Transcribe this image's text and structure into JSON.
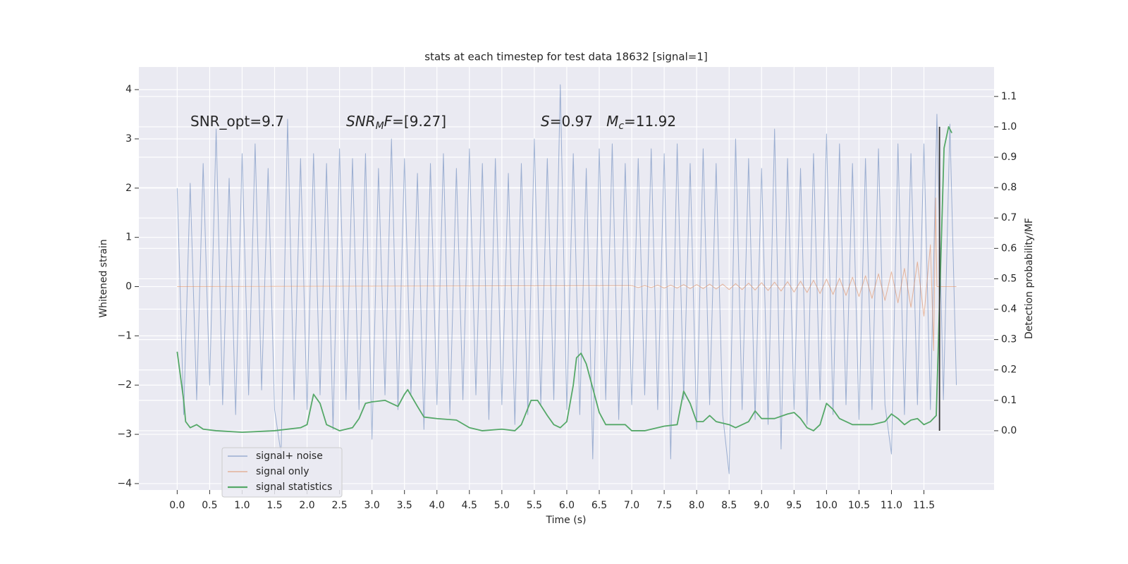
{
  "chart_data": {
    "type": "line",
    "title": "stats at each timestep for test data 18632 [signal=1]",
    "xlabel": "Time (s)",
    "ylabel": "Whitened strain",
    "y2label": "Detection probability/MF",
    "xlim": [
      -0.59,
      12.58
    ],
    "ylim": [
      -4.13,
      4.46
    ],
    "y2lim": [
      -0.195,
      1.197
    ],
    "xticks": [
      {
        "value": 0,
        "label": "0.0"
      },
      0.5,
      {
        "value": 1,
        "label": "1.0"
      },
      1.5,
      {
        "value": 2,
        "label": "2.0"
      },
      2.5,
      {
        "value": 3,
        "label": "3.0"
      },
      3.5,
      {
        "value": 4,
        "label": "4.0"
      },
      4.5,
      {
        "value": 5,
        "label": "5.0"
      },
      5.5,
      {
        "value": 6,
        "label": "6.0"
      },
      6.5,
      {
        "value": 7,
        "label": "7.0"
      },
      7.5,
      {
        "value": 8,
        "label": "8.0"
      },
      8.5,
      {
        "value": 9,
        "label": "9.0"
      },
      9.5,
      {
        "value": 10,
        "label": "10.0"
      },
      10.5,
      {
        "value": 11,
        "label": "11.0"
      },
      11.5
    ],
    "yticks": [
      {
        "value": -4,
        "label": "−4"
      },
      {
        "value": -3,
        "label": "−3"
      },
      {
        "value": -2,
        "label": "−2"
      },
      {
        "value": -1,
        "label": "−1"
      },
      0,
      1,
      2,
      3,
      4
    ],
    "y2ticks": [
      {
        "value": 0,
        "label": "0.0"
      },
      0.1,
      0.2,
      0.3,
      0.4,
      0.5,
      0.6,
      0.7,
      0.8,
      0.9,
      {
        "value": 1,
        "label": "1.0"
      },
      1.1
    ],
    "grid": true,
    "legend": "lower left",
    "annotations": [
      {
        "parts": [
          "SNR_opt=9.7"
        ]
      },
      {
        "parts": [
          "SNR",
          "M",
          "F",
          "=[9.27]"
        ]
      },
      {
        "parts": [
          "S",
          "=0.97   ",
          "M",
          "c",
          "=11.92"
        ]
      }
    ],
    "vline": {
      "x": 11.74,
      "y2range": [
        0,
        1
      ],
      "color": "#333333"
    },
    "series": [
      {
        "name": "signal+ noise",
        "color": "#4c72b0",
        "x": [
          0,
          0.1,
          0.2,
          0.3,
          0.4,
          0.5,
          0.6,
          0.7,
          0.8,
          0.9,
          1.0,
          1.1,
          1.2,
          1.3,
          1.4,
          1.5,
          1.6,
          1.7,
          1.8,
          1.9,
          2.0,
          2.1,
          2.2,
          2.3,
          2.4,
          2.5,
          2.6,
          2.7,
          2.8,
          2.9,
          3.0,
          3.1,
          3.2,
          3.3,
          3.4,
          3.5,
          3.6,
          3.7,
          3.8,
          3.9,
          4.0,
          4.1,
          4.2,
          4.3,
          4.4,
          4.5,
          4.6,
          4.7,
          4.8,
          4.9,
          5.0,
          5.1,
          5.2,
          5.3,
          5.4,
          5.5,
          5.6,
          5.7,
          5.8,
          5.9,
          6.0,
          6.1,
          6.2,
          6.3,
          6.4,
          6.5,
          6.6,
          6.7,
          6.8,
          6.9,
          7.0,
          7.1,
          7.2,
          7.3,
          7.4,
          7.5,
          7.6,
          7.7,
          7.8,
          7.9,
          8.0,
          8.1,
          8.2,
          8.3,
          8.4,
          8.5,
          8.6,
          8.7,
          8.8,
          8.9,
          9.0,
          9.1,
          9.2,
          9.3,
          9.4,
          9.5,
          9.6,
          9.7,
          9.8,
          9.9,
          10.0,
          10.1,
          10.2,
          10.3,
          10.4,
          10.5,
          10.6,
          10.7,
          10.8,
          10.9,
          11.0,
          11.1,
          11.2,
          11.3,
          11.4,
          11.5,
          11.6,
          11.7,
          11.8,
          11.9,
          12.0
        ],
        "values": [
          2.0,
          -2.6,
          2.1,
          -2.3,
          2.5,
          -2.0,
          3.2,
          -2.4,
          2.2,
          -2.6,
          2.7,
          -2.2,
          2.9,
          -2.1,
          2.4,
          -2.5,
          -3.4,
          3.4,
          -2.3,
          2.6,
          -2.5,
          2.7,
          -2.2,
          2.5,
          -2.9,
          2.8,
          -2.3,
          2.6,
          -2.5,
          2.7,
          -3.1,
          2.4,
          -2.2,
          3.0,
          -2.5,
          2.6,
          -2.2,
          2.3,
          -2.9,
          2.5,
          -2.4,
          2.7,
          -2.6,
          2.4,
          -2.3,
          2.8,
          -2.2,
          2.5,
          -2.7,
          2.6,
          -2.4,
          2.3,
          -2.8,
          2.5,
          -2.6,
          3.0,
          -2.4,
          2.6,
          -2.3,
          4.1,
          -2.5,
          2.7,
          -2.6,
          2.4,
          -3.5,
          2.8,
          -2.3,
          2.9,
          -2.7,
          2.5,
          -2.4,
          2.6,
          -2.2,
          2.8,
          -2.5,
          2.7,
          -3.5,
          2.9,
          -2.3,
          2.5,
          -2.9,
          2.8,
          -2.4,
          2.5,
          -2.6,
          -3.8,
          3.0,
          -2.5,
          2.6,
          -2.7,
          2.4,
          -2.8,
          3.2,
          -3.3,
          2.6,
          -2.5,
          2.4,
          -2.8,
          2.7,
          -2.3,
          3.1,
          -2.6,
          2.9,
          -2.4,
          2.5,
          -2.7,
          2.6,
          -2.5,
          2.8,
          -2.4,
          -3.4,
          2.9,
          -2.6,
          2.7,
          -2.4,
          2.9,
          -2.5,
          3.5,
          -2.3,
          3.3,
          -2.0
        ]
      },
      {
        "name": "signal only",
        "color": "#dd8452",
        "x": [
          0,
          7.0,
          7.1,
          7.2,
          7.3,
          7.4,
          7.5,
          7.6,
          7.7,
          7.8,
          7.9,
          8.0,
          8.1,
          8.2,
          8.3,
          8.4,
          8.5,
          8.6,
          8.7,
          8.8,
          8.9,
          9.0,
          9.1,
          9.2,
          9.3,
          9.4,
          9.5,
          9.6,
          9.7,
          9.8,
          9.9,
          10.0,
          10.1,
          10.2,
          10.3,
          10.4,
          10.5,
          10.6,
          10.7,
          10.8,
          10.9,
          11.0,
          11.1,
          11.2,
          11.3,
          11.4,
          11.5,
          11.6,
          11.65,
          11.68,
          11.7,
          12.0
        ],
        "values": [
          0,
          0.02,
          -0.02,
          0.02,
          -0.02,
          0.03,
          -0.03,
          0.03,
          -0.03,
          0.04,
          -0.04,
          0.04,
          -0.04,
          0.05,
          -0.05,
          0.05,
          -0.06,
          0.06,
          -0.06,
          0.07,
          -0.07,
          0.08,
          -0.08,
          0.09,
          -0.09,
          0.1,
          -0.11,
          0.11,
          -0.12,
          0.13,
          -0.14,
          0.15,
          -0.16,
          0.17,
          -0.18,
          0.19,
          -0.2,
          0.22,
          -0.24,
          0.26,
          -0.28,
          0.3,
          -0.33,
          0.37,
          -0.42,
          0.5,
          -0.6,
          0.85,
          -1.3,
          1.8,
          0,
          0
        ]
      },
      {
        "name": "signal statistics",
        "color": "#55a868",
        "axis": "y2",
        "x": [
          0,
          0.1,
          0.13,
          0.2,
          0.3,
          0.4,
          0.6,
          1.0,
          1.5,
          1.9,
          2.0,
          2.1,
          2.2,
          2.3,
          2.5,
          2.7,
          2.8,
          2.9,
          3.0,
          3.2,
          3.3,
          3.4,
          3.5,
          3.55,
          3.7,
          3.8,
          4.0,
          4.3,
          4.5,
          4.7,
          5.0,
          5.2,
          5.3,
          5.45,
          5.55,
          5.7,
          5.8,
          5.9,
          6.0,
          6.1,
          6.15,
          6.22,
          6.3,
          6.4,
          6.5,
          6.6,
          6.7,
          6.9,
          7.0,
          7.2,
          7.5,
          7.7,
          7.8,
          7.9,
          8.0,
          8.1,
          8.2,
          8.3,
          8.5,
          8.6,
          8.8,
          8.9,
          9.0,
          9.2,
          9.4,
          9.5,
          9.6,
          9.7,
          9.8,
          9.9,
          10.0,
          10.1,
          10.2,
          10.4,
          10.7,
          10.9,
          11.0,
          11.1,
          11.2,
          11.3,
          11.4,
          11.5,
          11.6,
          11.69,
          11.81,
          11.88,
          11.93
        ],
        "values": [
          0.26,
          0.1,
          0.03,
          0.01,
          0.02,
          0.005,
          0.0,
          -0.005,
          0.0,
          0.01,
          0.02,
          0.12,
          0.09,
          0.02,
          0.0,
          0.01,
          0.04,
          0.09,
          0.095,
          0.1,
          0.09,
          0.08,
          0.12,
          0.135,
          0.08,
          0.045,
          0.04,
          0.035,
          0.01,
          0.0,
          0.005,
          0.0,
          0.02,
          0.1,
          0.1,
          0.05,
          0.02,
          0.01,
          0.03,
          0.15,
          0.24,
          0.255,
          0.22,
          0.14,
          0.06,
          0.02,
          0.02,
          0.02,
          0.0,
          0.0,
          0.015,
          0.02,
          0.13,
          0.09,
          0.03,
          0.03,
          0.05,
          0.03,
          0.02,
          0.01,
          0.03,
          0.065,
          0.04,
          0.04,
          0.055,
          0.06,
          0.04,
          0.01,
          0.0,
          0.02,
          0.09,
          0.07,
          0.04,
          0.02,
          0.02,
          0.03,
          0.055,
          0.04,
          0.02,
          0.035,
          0.04,
          0.02,
          0.03,
          0.05,
          0.93,
          1.0,
          0.98
        ]
      }
    ]
  }
}
